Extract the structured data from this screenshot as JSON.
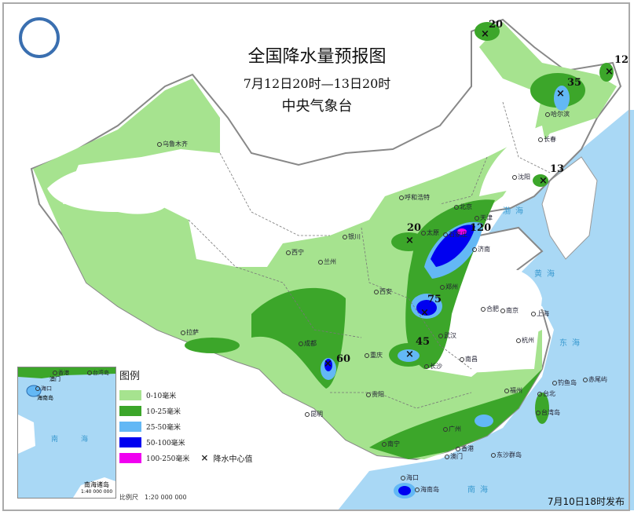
{
  "header": {
    "title": "全国降水量预报图",
    "period": "7月12日20时—13日20时",
    "agency": "中央气象台"
  },
  "legend": {
    "title": "图例",
    "items": [
      {
        "label": "0-10毫米",
        "color": "#a6e38f"
      },
      {
        "label": "10-25毫米",
        "color": "#3ca62a"
      },
      {
        "label": "25-50毫米",
        "color": "#63b8f5"
      },
      {
        "label": "50-100毫米",
        "color": "#0000f0"
      },
      {
        "label": "100-250毫米",
        "color": "#f000f0"
      }
    ],
    "center_symbol": "×",
    "center_label": "降水中心值"
  },
  "scale": "比例尺　1:20 000 000",
  "inset": {
    "title": "南海诸岛",
    "scale": "1:40 000 000",
    "labels": [
      "香港",
      "台湾岛",
      "澳门",
      "海口",
      "海南岛",
      "南　海"
    ]
  },
  "issued": "7月10日18时发布",
  "rain_centers": [
    "20",
    "35",
    "12",
    "13",
    "20",
    "120",
    "75",
    "45",
    "60"
  ],
  "cities": [
    "乌鲁木齐",
    "拉萨",
    "西宁",
    "兰州",
    "银川",
    "呼和浩特",
    "北京",
    "天津",
    "石家庄",
    "太原",
    "济南",
    "郑州",
    "西安",
    "成都",
    "重庆",
    "贵阳",
    "昆明",
    "南宁",
    "广州",
    "香港",
    "澳门",
    "海口",
    "长沙",
    "武汉",
    "南昌",
    "合肥",
    "南京",
    "上海",
    "杭州",
    "福州",
    "台北",
    "哈尔滨",
    "长春",
    "沈阳"
  ],
  "places": [
    "台湾岛",
    "钓鱼岛",
    "赤尾屿",
    "东沙群岛",
    "海南岛"
  ],
  "seas": [
    "渤海",
    "黄海",
    "东海",
    "南海"
  ],
  "colors": {
    "sea": "#a9d8f5",
    "land": "#ffffff",
    "border": "#888888"
  }
}
